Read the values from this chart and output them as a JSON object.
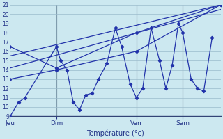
{
  "background_color": "#cce8f0",
  "grid_color": "#99bbcc",
  "line_color": "#2233aa",
  "xlabel": "Température (°c)",
  "ylim": [
    9,
    21
  ],
  "yticks": [
    9,
    10,
    11,
    12,
    13,
    14,
    15,
    16,
    17,
    18,
    19,
    20,
    21
  ],
  "day_positions": [
    0.0,
    0.22,
    0.6,
    0.82
  ],
  "day_labels": [
    "Jeu",
    "Dim",
    "Ven",
    "Sam"
  ],
  "vline_positions": [
    0.22,
    0.6,
    0.82
  ],
  "xlim": [
    0.0,
    1.0
  ],
  "series1_x": [
    0.0,
    0.04,
    0.07,
    0.22,
    0.24,
    0.27,
    0.3,
    0.33,
    0.36,
    0.39,
    0.42,
    0.46,
    0.5,
    0.53,
    0.57,
    0.6,
    0.63,
    0.67,
    0.71,
    0.74,
    0.77,
    0.8,
    0.82,
    0.86,
    0.89,
    0.92,
    0.96
  ],
  "series1_y": [
    9.0,
    10.5,
    11.0,
    16.5,
    15.0,
    14.0,
    10.5,
    9.7,
    11.3,
    11.5,
    13.0,
    14.7,
    18.5,
    16.5,
    12.5,
    11.0,
    12.0,
    18.5,
    15.0,
    12.0,
    14.5,
    19.0,
    18.0,
    13.0,
    12.0,
    11.7,
    17.5
  ],
  "series2_x": [
    0.0,
    0.22,
    0.6,
    1.0
  ],
  "series2_y": [
    13.0,
    14.0,
    16.0,
    21.0
  ],
  "series3_x": [
    0.0,
    0.22,
    0.6,
    1.0
  ],
  "series3_y": [
    16.5,
    14.2,
    18.0,
    21.0
  ],
  "series4_x": [
    0.0,
    1.0
  ],
  "series4_y": [
    15.5,
    21.0
  ],
  "series5_x": [
    0.0,
    1.0
  ],
  "series5_y": [
    14.2,
    20.5
  ]
}
